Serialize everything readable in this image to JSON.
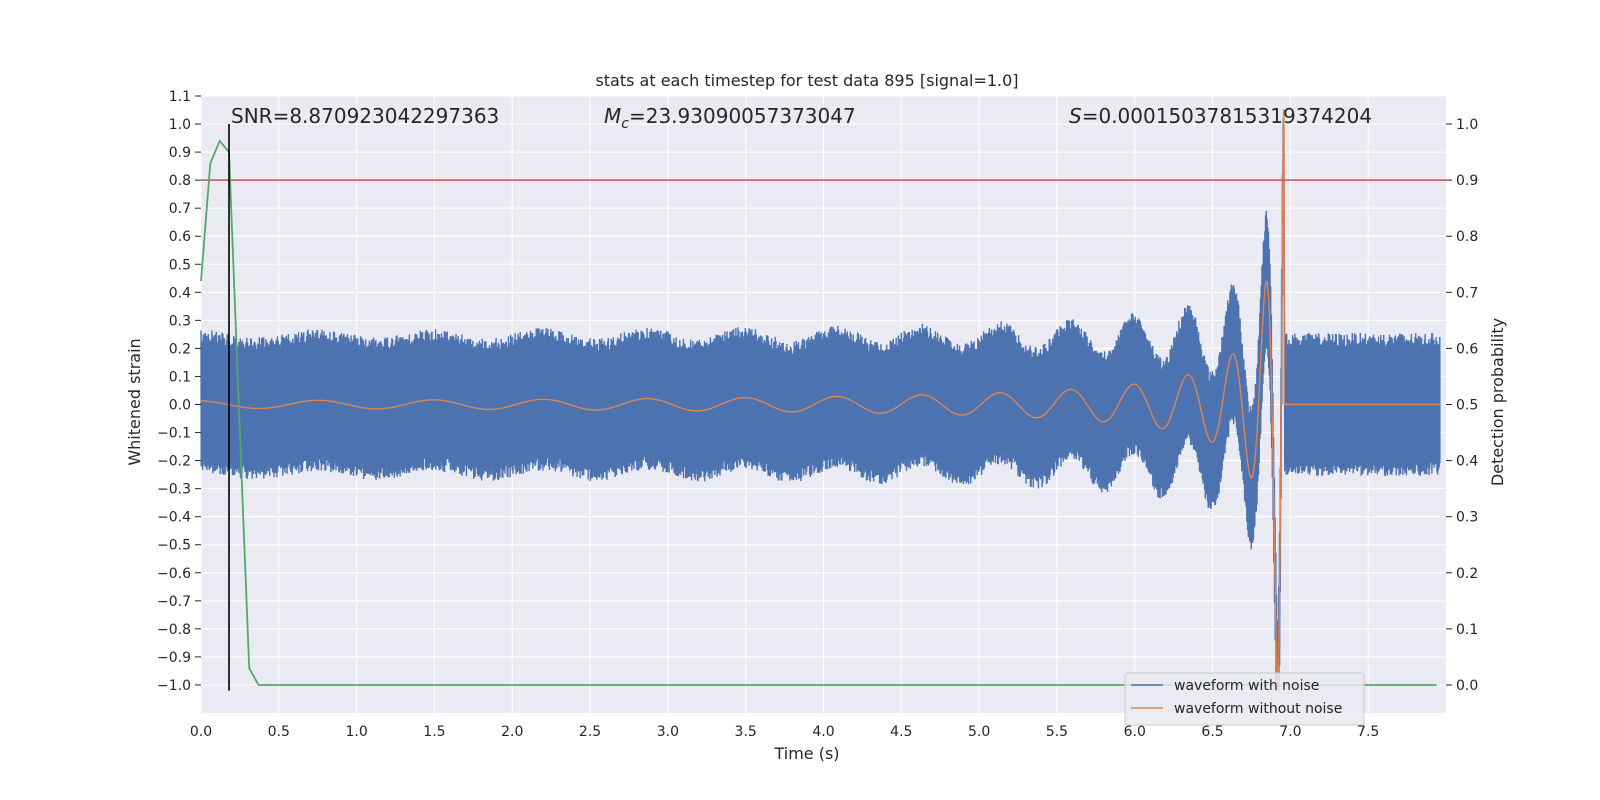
{
  "chart_data": {
    "type": "line",
    "title": "stats at each timestep for test data 895 [signal=1.0]",
    "xlabel": "Time (s)",
    "ylabel": "Whitened strain",
    "y2label": "Detection probability",
    "xlim": [
      0.0,
      8.0
    ],
    "ylim": [
      -1.1,
      1.1
    ],
    "y2lim": [
      -0.05,
      1.05
    ],
    "x_ticks": [
      "0.0",
      "0.5",
      "1.0",
      "1.5",
      "2.0",
      "2.5",
      "3.0",
      "3.5",
      "4.0",
      "4.5",
      "5.0",
      "5.5",
      "6.0",
      "6.5",
      "7.0",
      "7.5"
    ],
    "y_ticks": [
      "1.1",
      "1.0",
      "0.9",
      "0.8",
      "0.7",
      "0.6",
      "0.5",
      "0.4",
      "0.3",
      "0.2",
      "0.1",
      "0.0",
      "−0.1",
      "−0.2",
      "−0.3",
      "−0.4",
      "−0.5",
      "−0.6",
      "−0.7",
      "−0.8",
      "−0.9",
      "−1.0"
    ],
    "y2_ticks": [
      "1.0",
      "0.9",
      "0.8",
      "0.7",
      "0.6",
      "0.5",
      "0.4",
      "0.3",
      "0.2",
      "0.1",
      "0.0"
    ],
    "annotations": {
      "snr_label": "SNR",
      "snr_value": "8.870923042297363",
      "mc_symbol": "M",
      "mc_sub": "c",
      "mc_value": "23.93090057373047",
      "s_symbol": "S",
      "s_value": "0.00015037815319374204"
    },
    "threshold_prob": 0.9,
    "detection_time": 0.18,
    "merger_time": 6.96,
    "noise_band": [
      -0.25,
      0.25
    ],
    "detection_probability": {
      "x": [
        0.0,
        0.06,
        0.12,
        0.18,
        0.25,
        0.31,
        0.37,
        0.44,
        7.94
      ],
      "y": [
        0.72,
        0.93,
        0.97,
        0.95,
        0.45,
        0.03,
        0.0,
        0.0,
        0.0
      ]
    },
    "series": [
      {
        "name": "waveform with noise",
        "color": "#4c72b0"
      },
      {
        "name": "waveform without noise",
        "color": "#dd8452"
      },
      {
        "name": "detection probability",
        "color": "#55a868"
      }
    ],
    "colors": {
      "noisy": "#4c72b0",
      "clean": "#dd8452",
      "prob": "#55a868",
      "threshold": "#c44e52",
      "detection": "#000000",
      "axes_bg": "#eaeaf2"
    },
    "legend": {
      "position": "lower right",
      "entries": [
        "waveform with noise",
        "waveform without noise"
      ]
    }
  }
}
